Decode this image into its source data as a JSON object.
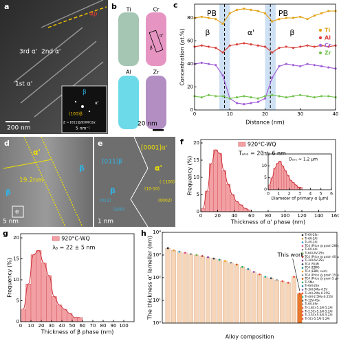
{
  "panels": {
    "a": {
      "label": "a",
      "texts": [
        "αp",
        "3rd α'",
        "2nd α'",
        "1st α'",
        "200 nm",
        "β",
        "α'",
        "(100)β",
        "Z = [011]β//[0001]α'",
        "5 nm⁻¹"
      ]
    },
    "b": {
      "label": "b",
      "texts": [
        "Ti",
        "Cr",
        "Al",
        "Zr",
        "20 nm",
        "α'",
        "β"
      ]
    },
    "d": {
      "label": "d",
      "texts": [
        "α'",
        "β",
        "β",
        "19.2nm",
        "e",
        "5 nm"
      ]
    },
    "e": {
      "label": "e",
      "texts": [
        "[011]β",
        "β",
        "[0001]α'",
        "α'",
        "(011)",
        "(200)",
        "(10-10)",
        "(-1100)",
        "(0002)",
        "1 nm"
      ]
    }
  },
  "chart_data": [
    {
      "type": "line",
      "label": "c",
      "xlabel": "Distance (nm)",
      "ylabel": "Concentration (at.%)",
      "x": [
        0,
        2,
        4,
        6,
        8,
        10,
        12,
        14,
        16,
        18,
        20,
        22,
        24,
        26,
        28,
        30,
        32,
        34,
        36,
        38,
        40
      ],
      "series": [
        {
          "name": "Ti",
          "color": "#e2a41c",
          "values": [
            80,
            81,
            80,
            79,
            75,
            84,
            87,
            88,
            87,
            86,
            84,
            77,
            79,
            80,
            80,
            81,
            79,
            82,
            84,
            86,
            86
          ]
        },
        {
          "name": "Al",
          "color": "#d9413c",
          "values": [
            55,
            56,
            55,
            54,
            50,
            56,
            57,
            58,
            57,
            56,
            55,
            50,
            54,
            55,
            54,
            55,
            56,
            55,
            56,
            55,
            56
          ]
        },
        {
          "name": "Cr",
          "color": "#a260d8",
          "values": [
            40,
            41,
            40,
            39,
            30,
            10,
            6,
            5,
            6,
            7,
            10,
            28,
            38,
            40,
            39,
            38,
            40,
            39,
            38,
            37,
            36
          ]
        },
        {
          "name": "Zr",
          "color": "#74c44f",
          "values": [
            12,
            11,
            13,
            12,
            12,
            10,
            11,
            12,
            11,
            10,
            12,
            13,
            12,
            11,
            12,
            13,
            12,
            11,
            12,
            12,
            11
          ]
        }
      ],
      "bands": [
        [
          7,
          10
        ],
        [
          20,
          23
        ]
      ],
      "annotations": [
        "PB",
        "PB",
        "β",
        "α'",
        "β"
      ],
      "xlim": [
        0,
        40
      ],
      "xticks": [
        0,
        10,
        20,
        30,
        40
      ],
      "ylim": [
        0,
        92
      ],
      "yticks": [
        0,
        20,
        40,
        60,
        80
      ]
    },
    {
      "type": "histogram",
      "label": "f",
      "xlabel": "Thickness of α' phase (nm)",
      "ylabel": "Frequency (%)",
      "legend": "920°C-WQ",
      "annotation": "Tₐᵥₑ = 20 ± 6 nm",
      "color": "#f2a0a4",
      "bins": [
        0,
        5,
        10,
        15,
        20,
        25,
        30,
        35,
        40,
        45,
        50,
        55,
        60
      ],
      "values": [
        1,
        6,
        14,
        18,
        17,
        12,
        8,
        5,
        3,
        2,
        1,
        0.5
      ],
      "xlim": [
        0,
        160
      ],
      "xticks": [
        0,
        20,
        40,
        60,
        80,
        100,
        120,
        140,
        160
      ],
      "ylim": [
        0,
        21
      ],
      "yticks": [
        0,
        5,
        10,
        15,
        20
      ],
      "inset": {
        "type": "histogram",
        "xlabel": "Diameter of primary α (μm)",
        "annotation": "Dₐᵥₑ ≈ 1.2 μm",
        "color": "#f2a0a4",
        "bins": [
          0,
          0.25,
          0.5,
          0.75,
          1,
          1.25,
          1.5,
          1.75,
          2,
          2.25,
          2.5,
          2.75,
          3,
          3.25
        ],
        "values": [
          2,
          5,
          9,
          11,
          12,
          10,
          8,
          6,
          4,
          3,
          2,
          1,
          1
        ],
        "xlim": [
          0,
          6
        ],
        "xticks": [
          0,
          1,
          2,
          3,
          4,
          5,
          6
        ],
        "ylim": [
          0,
          15
        ],
        "yticks": [
          0,
          5,
          10,
          15
        ]
      }
    },
    {
      "type": "histogram",
      "label": "g",
      "xlabel": "Thickness of β phase (nm)",
      "ylabel": "Frequency (%)",
      "legend": "920°C-WQ",
      "annotation": "λᵦ = 22 ± 5 nm",
      "color": "#f2a0a4",
      "bins": [
        0,
        5,
        10,
        15,
        20,
        25,
        30,
        35,
        40,
        45,
        50,
        55,
        60
      ],
      "values": [
        3,
        9,
        16,
        17,
        14,
        11,
        6,
        4,
        3,
        2,
        1,
        1
      ],
      "xlim": [
        0,
        110
      ],
      "xticks": [
        0,
        10,
        20,
        30,
        40,
        50,
        60,
        70,
        80,
        90,
        100
      ],
      "ylim": [
        0,
        21
      ],
      "yticks": [
        0,
        5,
        10,
        15,
        20
      ]
    },
    {
      "type": "logbar",
      "label": "h",
      "xlabel": "Alloy composition",
      "ylabel": "The thickness α' lamellar (nm)",
      "annotation": "This work",
      "color": "#f6d5b8",
      "highlight_color": "#e8782a",
      "log": true,
      "categories": [
        "Ti-6V-2Sn",
        "Ti-6V-2Al",
        "Ti-4V-2Al",
        "TC4 (Price @ grain 200 μm)",
        "Ti-6V-4Al",
        "Ti-6Al-4V-2Sn",
        "TC4 (Price @ grain 40 μm)",
        "Ti-2Al-6V-2Sn",
        "TC4 (SLM)",
        "TC4 (EBM)",
        "TC4 (EBM, sum)",
        "TC4 (Price @ grain 15 μm)",
        "TC4 (Price @ grain 5 μm)",
        "Ti-5Mo",
        "Ti-6Al-2Sn",
        "Ti-3Al-5Mo-4.5V",
        "Ti-4Al-2Mo-0.25Si",
        "Ti-4Al-2.5Mo-0.25Si",
        "Ti-12V-4Sn",
        "Ti-6V-4Sn",
        "Ti-1.8Cr-5.5Al-5.2Al",
        "Ti-2.5Cr-5.5Al-5.2Al",
        "Ti-3.5Cr-5.5Al-5.2Al",
        "Ti-5Cr-5.5Al-5.2Al"
      ],
      "values": [
        2000,
        1600,
        1400,
        1250,
        1100,
        1000,
        900,
        800,
        700,
        620,
        540,
        460,
        380,
        300,
        240,
        180,
        140,
        110,
        95,
        80,
        70,
        60,
        110,
        20
      ],
      "marker_colors": [
        "#222",
        "#e69a2e",
        "#3a9ad9",
        "#d94d8a",
        "#888",
        "#6ab04c",
        "#c0392b",
        "#8e44ad",
        "#2c3e50",
        "#16a085",
        "#f39c12",
        "#7f8c8d",
        "#d35400",
        "#27ae60",
        "#2980b9",
        "#9b59b6",
        "#e74c3c",
        "#1abc9c",
        "#34495e",
        "#95a5a6",
        "#e74c3c",
        "#e74c3c",
        "#e74c3c",
        "#e74c3c"
      ],
      "ylim": [
        1,
        10000
      ],
      "yticks": [
        {
          "value": 1,
          "label": "10⁰"
        },
        {
          "value": 10,
          "label": "10¹"
        },
        {
          "value": 100,
          "label": "10²"
        },
        {
          "value": 1000,
          "label": "10³"
        },
        {
          "value": 10000,
          "label": "10⁴"
        }
      ]
    }
  ]
}
